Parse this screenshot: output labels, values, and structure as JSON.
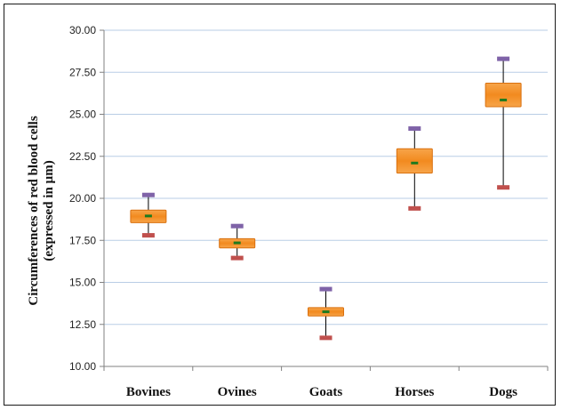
{
  "chart_data": {
    "type": "box",
    "title": "",
    "xlabel": "",
    "ylabel_lines": [
      "Circumferences of red blood cells",
      "(expressed in µm)"
    ],
    "ylim": [
      10.0,
      30.0
    ],
    "yticks": [
      "10.00",
      "12.50",
      "15.00",
      "17.50",
      "20.00",
      "22.50",
      "25.00",
      "27.50",
      "30.00"
    ],
    "grid": true,
    "legend": "none",
    "categories": [
      "Bovines",
      "Ovines",
      "Goats",
      "Horses",
      "Dogs"
    ],
    "boxes": [
      {
        "min": 17.8,
        "q1": 18.55,
        "median": 18.95,
        "q3": 19.3,
        "max": 20.2
      },
      {
        "min": 16.45,
        "q1": 17.05,
        "median": 17.35,
        "q3": 17.6,
        "max": 18.35
      },
      {
        "min": 11.7,
        "q1": 13.0,
        "median": 13.25,
        "q3": 13.5,
        "max": 14.6
      },
      {
        "min": 19.4,
        "q1": 21.5,
        "median": 22.1,
        "q3": 22.95,
        "max": 24.15
      },
      {
        "min": 20.65,
        "q1": 25.45,
        "median": 25.85,
        "q3": 26.85,
        "max": 28.3
      }
    ],
    "colors": {
      "box_fill": "#f28a1f",
      "box_edge": "#d9700f",
      "median": "#1f7a1f",
      "max_marker": "#7f63a8",
      "min_marker": "#c0504d",
      "grid": "#b9cde5",
      "axis": "#808080"
    }
  }
}
